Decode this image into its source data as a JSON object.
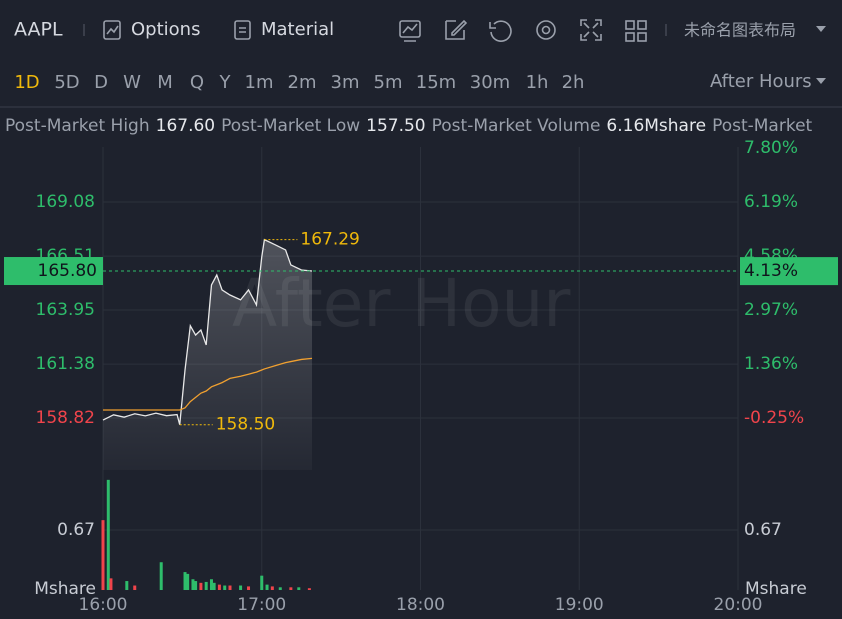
{
  "toolbar": {
    "symbol": "AAPL",
    "options": "Options",
    "material": "Material",
    "layout_name": "未命名图表布局",
    "timeframes": [
      "1D",
      "5D",
      "D",
      "W",
      "M",
      "Q",
      "Y",
      "1m",
      "2m",
      "3m",
      "5m",
      "15m",
      "30m",
      "1h",
      "2h"
    ],
    "active_timeframe": "1D",
    "session": "After Hours"
  },
  "info": [
    {
      "label": "Post-Market High",
      "value": "167.60"
    },
    {
      "label": "Post-Market Low",
      "value": "157.50"
    },
    {
      "label": "Post-Market Volume",
      "value": "6.16Mshare"
    },
    {
      "label": "Post-Market"
    }
  ],
  "chart_data": {
    "type": "line",
    "watermark": "After Hour",
    "x": [
      "16:00",
      "16:04",
      "16:08",
      "16:12",
      "16:16",
      "16:20",
      "16:24",
      "16:28",
      "16:29",
      "16:31",
      "16:33",
      "16:35",
      "16:37",
      "16:39",
      "16:41",
      "16:43",
      "16:45",
      "16:48",
      "16:52",
      "16:55",
      "16:58",
      "17:00",
      "17:01",
      "17:05",
      "17:09",
      "17:11",
      "17:15",
      "17:19"
    ],
    "series": [
      {
        "color": "#e8e8e8",
        "values": [
          158.72,
          158.97,
          158.86,
          159.02,
          158.92,
          159.05,
          158.93,
          158.98,
          158.5,
          161.1,
          163.2,
          162.76,
          163.0,
          162.29,
          165.14,
          165.61,
          164.9,
          164.66,
          164.43,
          164.9,
          164.19,
          166.47,
          167.29,
          167.05,
          166.8,
          166.09,
          165.85,
          165.8
        ]
      },
      {
        "color": "#f0a030",
        "values": [
          159.2,
          159.2,
          159.2,
          159.2,
          159.2,
          159.2,
          159.2,
          159.2,
          159.2,
          159.3,
          159.6,
          159.8,
          160.0,
          160.1,
          160.3,
          160.4,
          160.5,
          160.7,
          160.8,
          160.9,
          161.0,
          161.1,
          161.15,
          161.3,
          161.45,
          161.5,
          161.6,
          161.65
        ]
      }
    ],
    "xlim": [
      "16:00",
      "20:00"
    ],
    "xticks": [
      "16:00",
      "17:00",
      "18:00",
      "19:00",
      "20:00"
    ],
    "ylim": [
      156.35,
      171.69
    ],
    "yticks": [
      158.82,
      161.38,
      163.95,
      166.51,
      169.08
    ],
    "y2lim": [
      -1.8,
      7.83
    ],
    "y2ticks": [
      {
        "value": -0.25,
        "label": "-0.25%"
      },
      {
        "value": 1.36,
        "label": "1.36%"
      },
      {
        "value": 2.97,
        "label": "2.97%"
      },
      {
        "value": 4.58,
        "label": "4.58%"
      },
      {
        "value": 6.19,
        "label": "6.19%"
      },
      {
        "value": 7.8,
        "label": "7.80%"
      }
    ],
    "current": {
      "value": 165.8,
      "label": "165.80",
      "pct": {
        "value": 4.13,
        "label": "4.13%"
      },
      "color": "#2ebd6b"
    },
    "annotations": [
      {
        "x": "17:01",
        "value": 167.29
      },
      {
        "x": "16:29",
        "value": 158.5,
        "label": "158.50"
      }
    ],
    "grid": true,
    "up_color": "#2ebd6b",
    "down_color": "#f0444b",
    "volume": {
      "unit": "Mshare",
      "ylim": [
        0,
        1.34
      ],
      "yticks": [
        0.67
      ],
      "x": [
        "16:00",
        "16:02",
        "16:03",
        "16:09",
        "16:12",
        "16:22",
        "16:31",
        "16:32",
        "16:34",
        "16:35",
        "16:37",
        "16:39",
        "16:41",
        "16:42",
        "16:44",
        "16:46",
        "16:48",
        "16:52",
        "16:55",
        "17:00",
        "17:02",
        "17:04",
        "17:07",
        "17:11",
        "17:14",
        "17:18"
      ],
      "values": [
        0.78,
        1.23,
        0.13,
        0.1,
        0.05,
        0.31,
        0.2,
        0.18,
        0.12,
        0.1,
        0.08,
        0.09,
        0.12,
        0.08,
        0.06,
        0.05,
        0.05,
        0.05,
        0.04,
        0.16,
        0.06,
        0.04,
        0.03,
        0.03,
        0.03,
        0.02
      ],
      "colors": [
        "#f0444b",
        "#2ebd6b",
        "#f0444b",
        "#2ebd6b",
        "#f0444b",
        "#2ebd6b",
        "#2ebd6b",
        "#2ebd6b",
        "#2ebd6b",
        "#2ebd6b",
        "#f0444b",
        "#2ebd6b",
        "#2ebd6b",
        "#2ebd6b",
        "#f0444b",
        "#2ebd6b",
        "#f0444b",
        "#2ebd6b",
        "#f0444b",
        "#2ebd6b",
        "#2ebd6b",
        "#f0444b",
        "#2ebd6b",
        "#f0444b",
        "#2ebd6b",
        "#f0444b"
      ]
    }
  }
}
